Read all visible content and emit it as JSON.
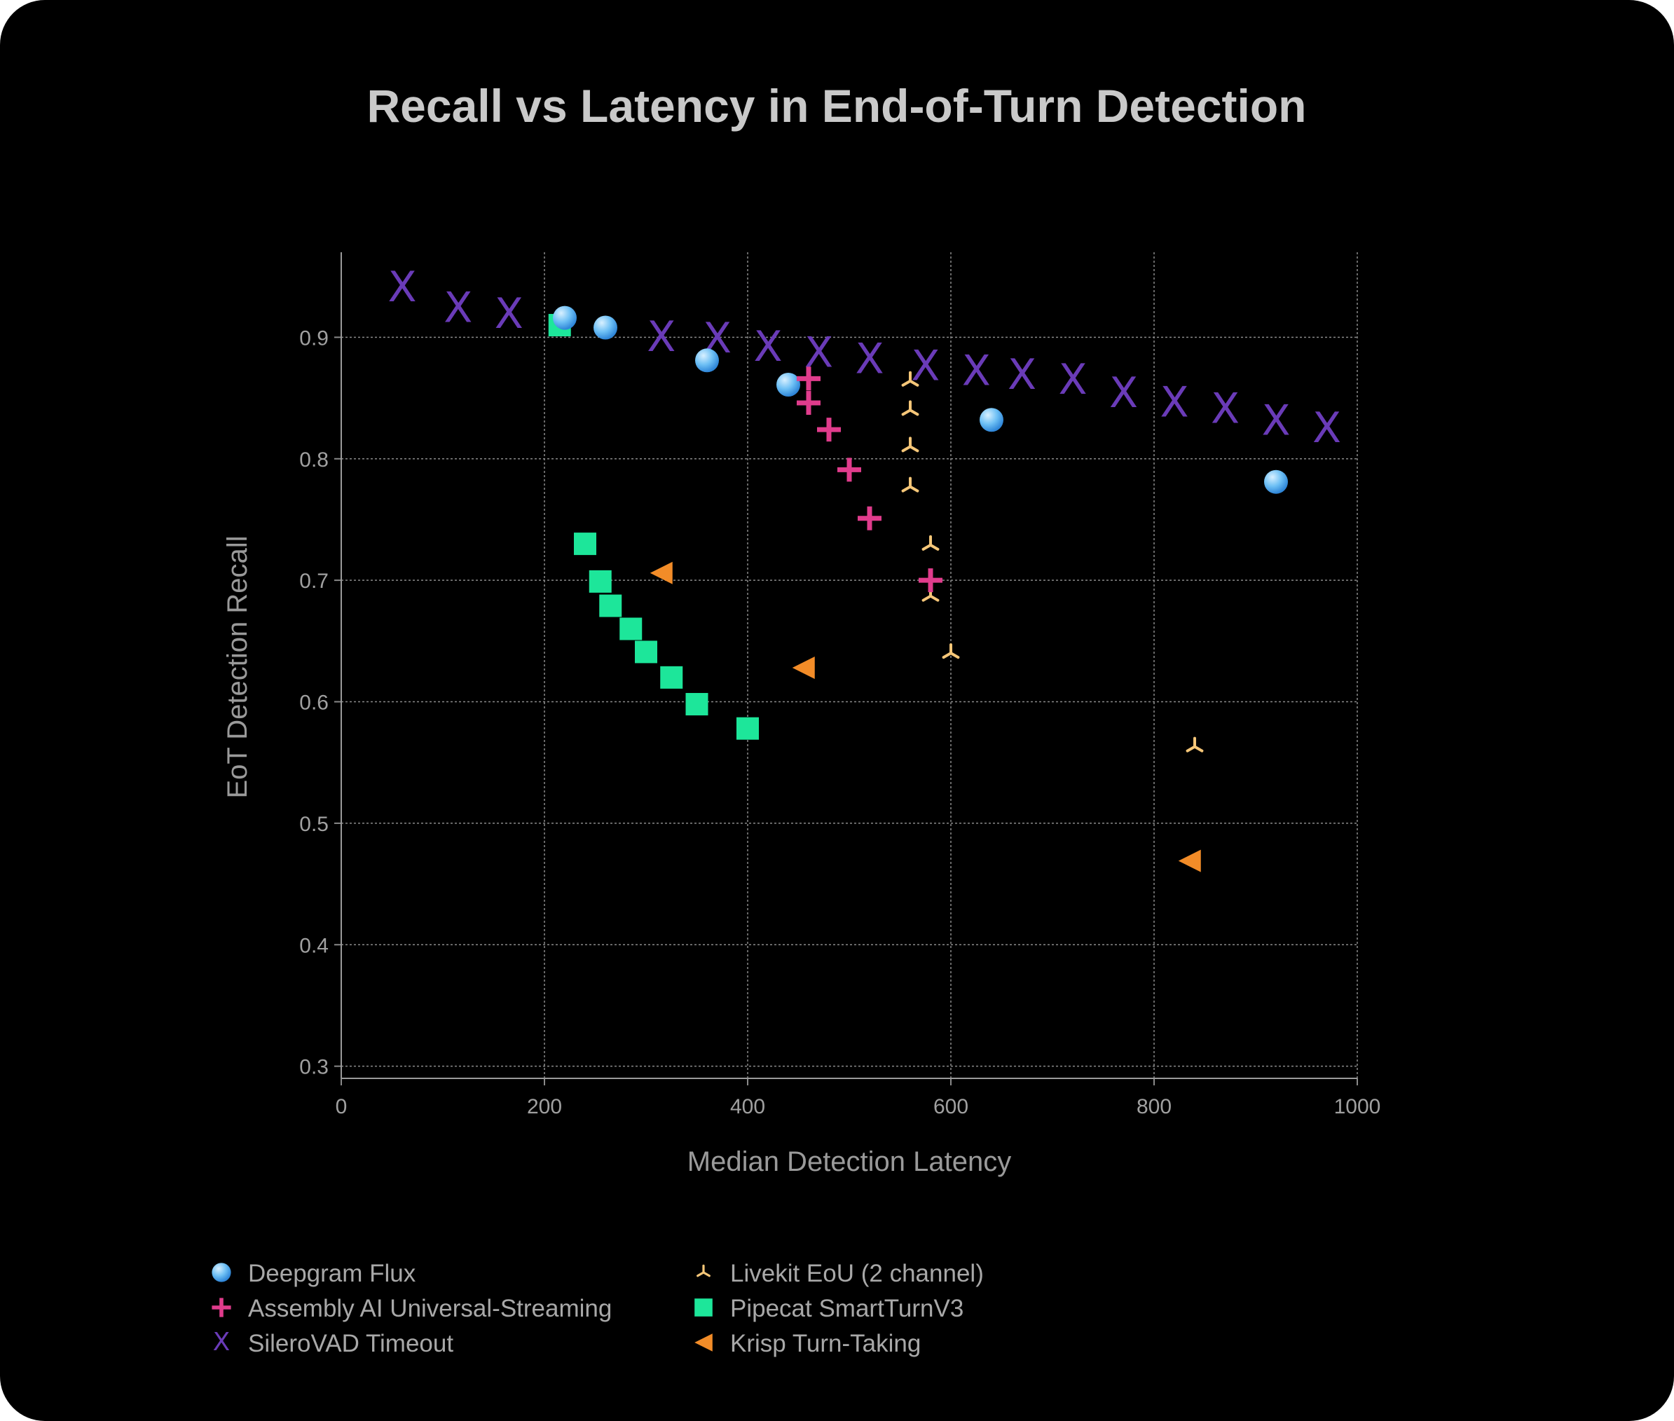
{
  "chart_data": {
    "type": "scatter",
    "title": "Recall vs Latency in End-of-Turn Detection",
    "xlabel": "Median Detection Latency",
    "ylabel": "EoT Detection Recall",
    "xlim": [
      0,
      1000
    ],
    "ylim": [
      0.29,
      0.97
    ],
    "xticks": [
      0,
      200,
      400,
      600,
      800,
      1000
    ],
    "yticks": [
      0.3,
      0.4,
      0.5,
      0.6,
      0.7,
      0.8,
      0.9
    ],
    "xtick_labels": [
      "0",
      "200",
      "400",
      "600",
      "800",
      "1000"
    ],
    "ytick_labels": [
      "0.3",
      "0.4",
      "0.5",
      "0.6",
      "0.7",
      "0.8",
      "0.9"
    ],
    "grid": true,
    "legend_position": "bottom",
    "series": [
      {
        "name": "Deepgram Flux",
        "marker": "circle",
        "color": "#6ec0f5",
        "points": [
          [
            220,
            0.916
          ],
          [
            260,
            0.908
          ],
          [
            360,
            0.881
          ],
          [
            440,
            0.861
          ],
          [
            640,
            0.832
          ],
          [
            920,
            0.781
          ]
        ]
      },
      {
        "name": "Assembly AI Universal-Streaming",
        "marker": "plus",
        "color": "#e03c8c",
        "points": [
          [
            460,
            0.866
          ],
          [
            460,
            0.846
          ],
          [
            480,
            0.824
          ],
          [
            500,
            0.791
          ],
          [
            520,
            0.751
          ],
          [
            580,
            0.7
          ]
        ]
      },
      {
        "name": "SileroVAD Timeout",
        "marker": "x",
        "color": "#6a3bb8",
        "points": [
          [
            60,
            0.94
          ],
          [
            115,
            0.923
          ],
          [
            165,
            0.918
          ],
          [
            315,
            0.899
          ],
          [
            370,
            0.898
          ],
          [
            420,
            0.891
          ],
          [
            470,
            0.886
          ],
          [
            520,
            0.881
          ],
          [
            575,
            0.875
          ],
          [
            625,
            0.871
          ],
          [
            670,
            0.868
          ],
          [
            720,
            0.864
          ],
          [
            770,
            0.853
          ],
          [
            820,
            0.845
          ],
          [
            870,
            0.84
          ],
          [
            920,
            0.83
          ],
          [
            970,
            0.824
          ]
        ]
      },
      {
        "name": "Livekit EoU (2 channel)",
        "marker": "tri",
        "color": "#f5c678",
        "points": [
          [
            560,
            0.864
          ],
          [
            560,
            0.84
          ],
          [
            560,
            0.81
          ],
          [
            560,
            0.777
          ],
          [
            580,
            0.729
          ],
          [
            580,
            0.687
          ],
          [
            600,
            0.64
          ],
          [
            840,
            0.563
          ]
        ]
      },
      {
        "name": "Pipecat SmartTurnV3",
        "marker": "square",
        "color": "#1de69a",
        "points": [
          [
            215,
            0.91
          ],
          [
            240,
            0.73
          ],
          [
            255,
            0.699
          ],
          [
            265,
            0.679
          ],
          [
            285,
            0.66
          ],
          [
            300,
            0.641
          ],
          [
            325,
            0.62
          ],
          [
            350,
            0.598
          ],
          [
            400,
            0.578
          ]
        ]
      },
      {
        "name": "Krisp Turn-Taking",
        "marker": "triangle-left",
        "color": "#f28c28",
        "points": [
          [
            315,
            0.706
          ],
          [
            455,
            0.628
          ],
          [
            835,
            0.469
          ]
        ]
      }
    ]
  }
}
